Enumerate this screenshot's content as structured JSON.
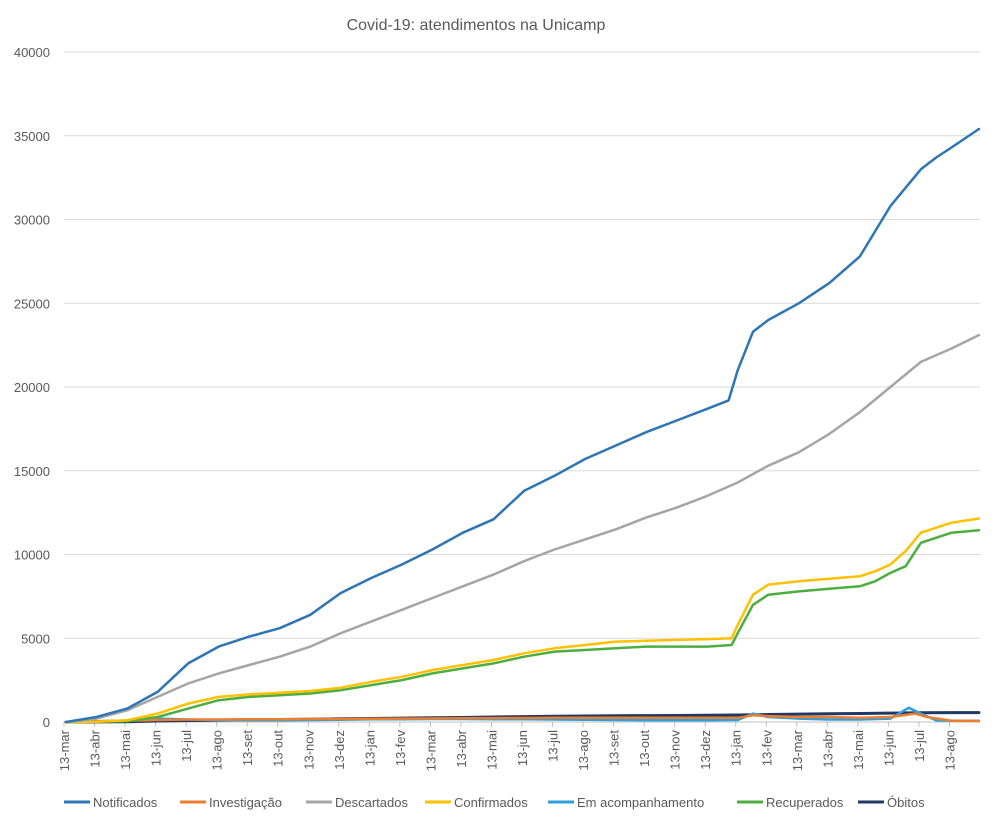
{
  "chart_data": {
    "type": "line",
    "title": "Covid-19: atendimentos  na Unicamp",
    "xlabel": "",
    "ylabel": "",
    "ylim": [
      0,
      40000
    ],
    "yticks": [
      "0",
      "5000",
      "10000",
      "15000",
      "20000",
      "25000",
      "30000",
      "35000",
      "40000"
    ],
    "grid": "horizontal",
    "legend_position": "bottom",
    "categories": [
      "13-mar",
      "13-abr",
      "13-mai",
      "13-jun",
      "13-jul",
      "13-ago",
      "13-set",
      "13-out",
      "13-nov",
      "13-dez",
      "13-jan",
      "13-fev",
      "13-mar",
      "13-abr",
      "13-mai",
      "13-jun",
      "13-jul",
      "13-ago",
      "13-set",
      "13-out",
      "13-nov",
      "13-dez",
      "13-jan",
      "13-fev",
      "13-mar",
      "13-abr",
      "13-mai",
      "13-jun",
      "13-jul",
      "13-ago"
    ],
    "series": [
      {
        "name": "Notificados",
        "color": "#2e75b6",
        "x": [
          0,
          1,
          2,
          3,
          4,
          5,
          6,
          7,
          8,
          9,
          10,
          11,
          12,
          13,
          14,
          15,
          16,
          17,
          18,
          19,
          20,
          21,
          21.7,
          22,
          22.5,
          23,
          24,
          25,
          26,
          27,
          28,
          28.5,
          29,
          29.9
        ],
        "values": [
          0,
          300,
          800,
          1800,
          3500,
          4500,
          5100,
          5600,
          6400,
          7700,
          8600,
          9400,
          10300,
          11300,
          12100,
          13800,
          14700,
          15700,
          16500,
          17300,
          18000,
          18700,
          19200,
          21000,
          23300,
          24000,
          25000,
          26200,
          27800,
          30800,
          33000,
          33700,
          34300,
          35400
        ]
      },
      {
        "name": "Investigação",
        "color": "#ed7d31",
        "x": [
          0,
          1,
          2,
          3,
          4,
          5,
          6,
          7,
          8,
          9,
          10,
          11,
          12,
          13,
          14,
          15,
          16,
          17,
          18,
          19,
          20,
          21,
          22,
          22.5,
          23,
          24,
          25,
          26,
          27,
          27.8,
          28.2,
          29,
          29.9
        ],
        "values": [
          0,
          50,
          80,
          120,
          150,
          150,
          160,
          170,
          180,
          180,
          190,
          200,
          210,
          220,
          230,
          240,
          250,
          250,
          250,
          250,
          250,
          250,
          250,
          400,
          350,
          300,
          300,
          250,
          300,
          500,
          300,
          80,
          60
        ]
      },
      {
        "name": "Descartados",
        "color": "#a5a5a5",
        "x": [
          0,
          1,
          2,
          3,
          4,
          5,
          6,
          7,
          8,
          9,
          10,
          11,
          12,
          13,
          14,
          15,
          16,
          17,
          18,
          19,
          20,
          21,
          22,
          23,
          24,
          25,
          26,
          27,
          28,
          29,
          29.9
        ],
        "values": [
          0,
          200,
          700,
          1500,
          2300,
          2900,
          3400,
          3900,
          4500,
          5300,
          6000,
          6700,
          7400,
          8100,
          8800,
          9600,
          10300,
          10900,
          11500,
          12200,
          12800,
          13500,
          14300,
          15300,
          16100,
          17200,
          18500,
          20000,
          21500,
          22300,
          23100
        ]
      },
      {
        "name": "Confirmados",
        "color": "#ffc000",
        "x": [
          0,
          1,
          2,
          3,
          4,
          5,
          6,
          7,
          8,
          9,
          10,
          11,
          12,
          13,
          14,
          15,
          16,
          17,
          18,
          19,
          20,
          21,
          21.8,
          22,
          22.5,
          23,
          24,
          25,
          26,
          26.5,
          27,
          27.5,
          28,
          29,
          29.9
        ],
        "values": [
          0,
          20,
          100,
          500,
          1100,
          1500,
          1650,
          1750,
          1850,
          2050,
          2400,
          2700,
          3100,
          3400,
          3700,
          4100,
          4400,
          4600,
          4800,
          4850,
          4900,
          4950,
          5000,
          5800,
          7600,
          8200,
          8400,
          8550,
          8700,
          9000,
          9400,
          10200,
          11300,
          11900,
          12150
        ]
      },
      {
        "name": "Em acompanhamento",
        "color": "#2e9fd8",
        "x": [
          0,
          1,
          2,
          3,
          4,
          5,
          6,
          7,
          8,
          9,
          10,
          11,
          12,
          13,
          14,
          15,
          16,
          17,
          18,
          19,
          20,
          21,
          22,
          22.5,
          23,
          24,
          25,
          26,
          27,
          27.6,
          28,
          28.5,
          29,
          29.9
        ],
        "values": [
          0,
          40,
          90,
          200,
          150,
          100,
          100,
          100,
          120,
          140,
          160,
          170,
          180,
          180,
          170,
          160,
          150,
          130,
          120,
          110,
          110,
          110,
          120,
          500,
          300,
          200,
          150,
          150,
          200,
          850,
          500,
          100,
          80,
          80
        ]
      },
      {
        "name": "Recuperados",
        "color": "#4ead3f",
        "x": [
          0,
          1,
          2,
          3,
          4,
          5,
          6,
          7,
          8,
          9,
          10,
          11,
          12,
          13,
          14,
          15,
          16,
          17,
          18,
          19,
          20,
          21,
          21.8,
          22,
          22.5,
          23,
          24,
          25,
          26,
          26.5,
          27,
          27.5,
          28,
          29,
          29.9
        ],
        "values": [
          0,
          10,
          50,
          300,
          800,
          1300,
          1500,
          1600,
          1700,
          1900,
          2200,
          2500,
          2900,
          3200,
          3500,
          3900,
          4200,
          4300,
          4400,
          4500,
          4500,
          4500,
          4600,
          5300,
          7000,
          7600,
          7800,
          7950,
          8100,
          8400,
          8900,
          9300,
          10700,
          11300,
          11450
        ]
      },
      {
        "name": "Óbitos",
        "color": "#1f3864",
        "x": [
          0,
          1,
          2,
          3,
          4,
          5,
          6,
          7,
          8,
          9,
          10,
          11,
          12,
          13,
          14,
          15,
          16,
          17,
          18,
          19,
          20,
          21,
          22,
          23,
          24,
          25,
          26,
          27,
          28,
          29,
          29.9
        ],
        "values": [
          0,
          5,
          20,
          60,
          90,
          110,
          130,
          150,
          170,
          190,
          210,
          230,
          250,
          270,
          300,
          320,
          340,
          360,
          370,
          380,
          390,
          400,
          420,
          450,
          470,
          490,
          510,
          530,
          550,
          560,
          560
        ]
      }
    ]
  }
}
